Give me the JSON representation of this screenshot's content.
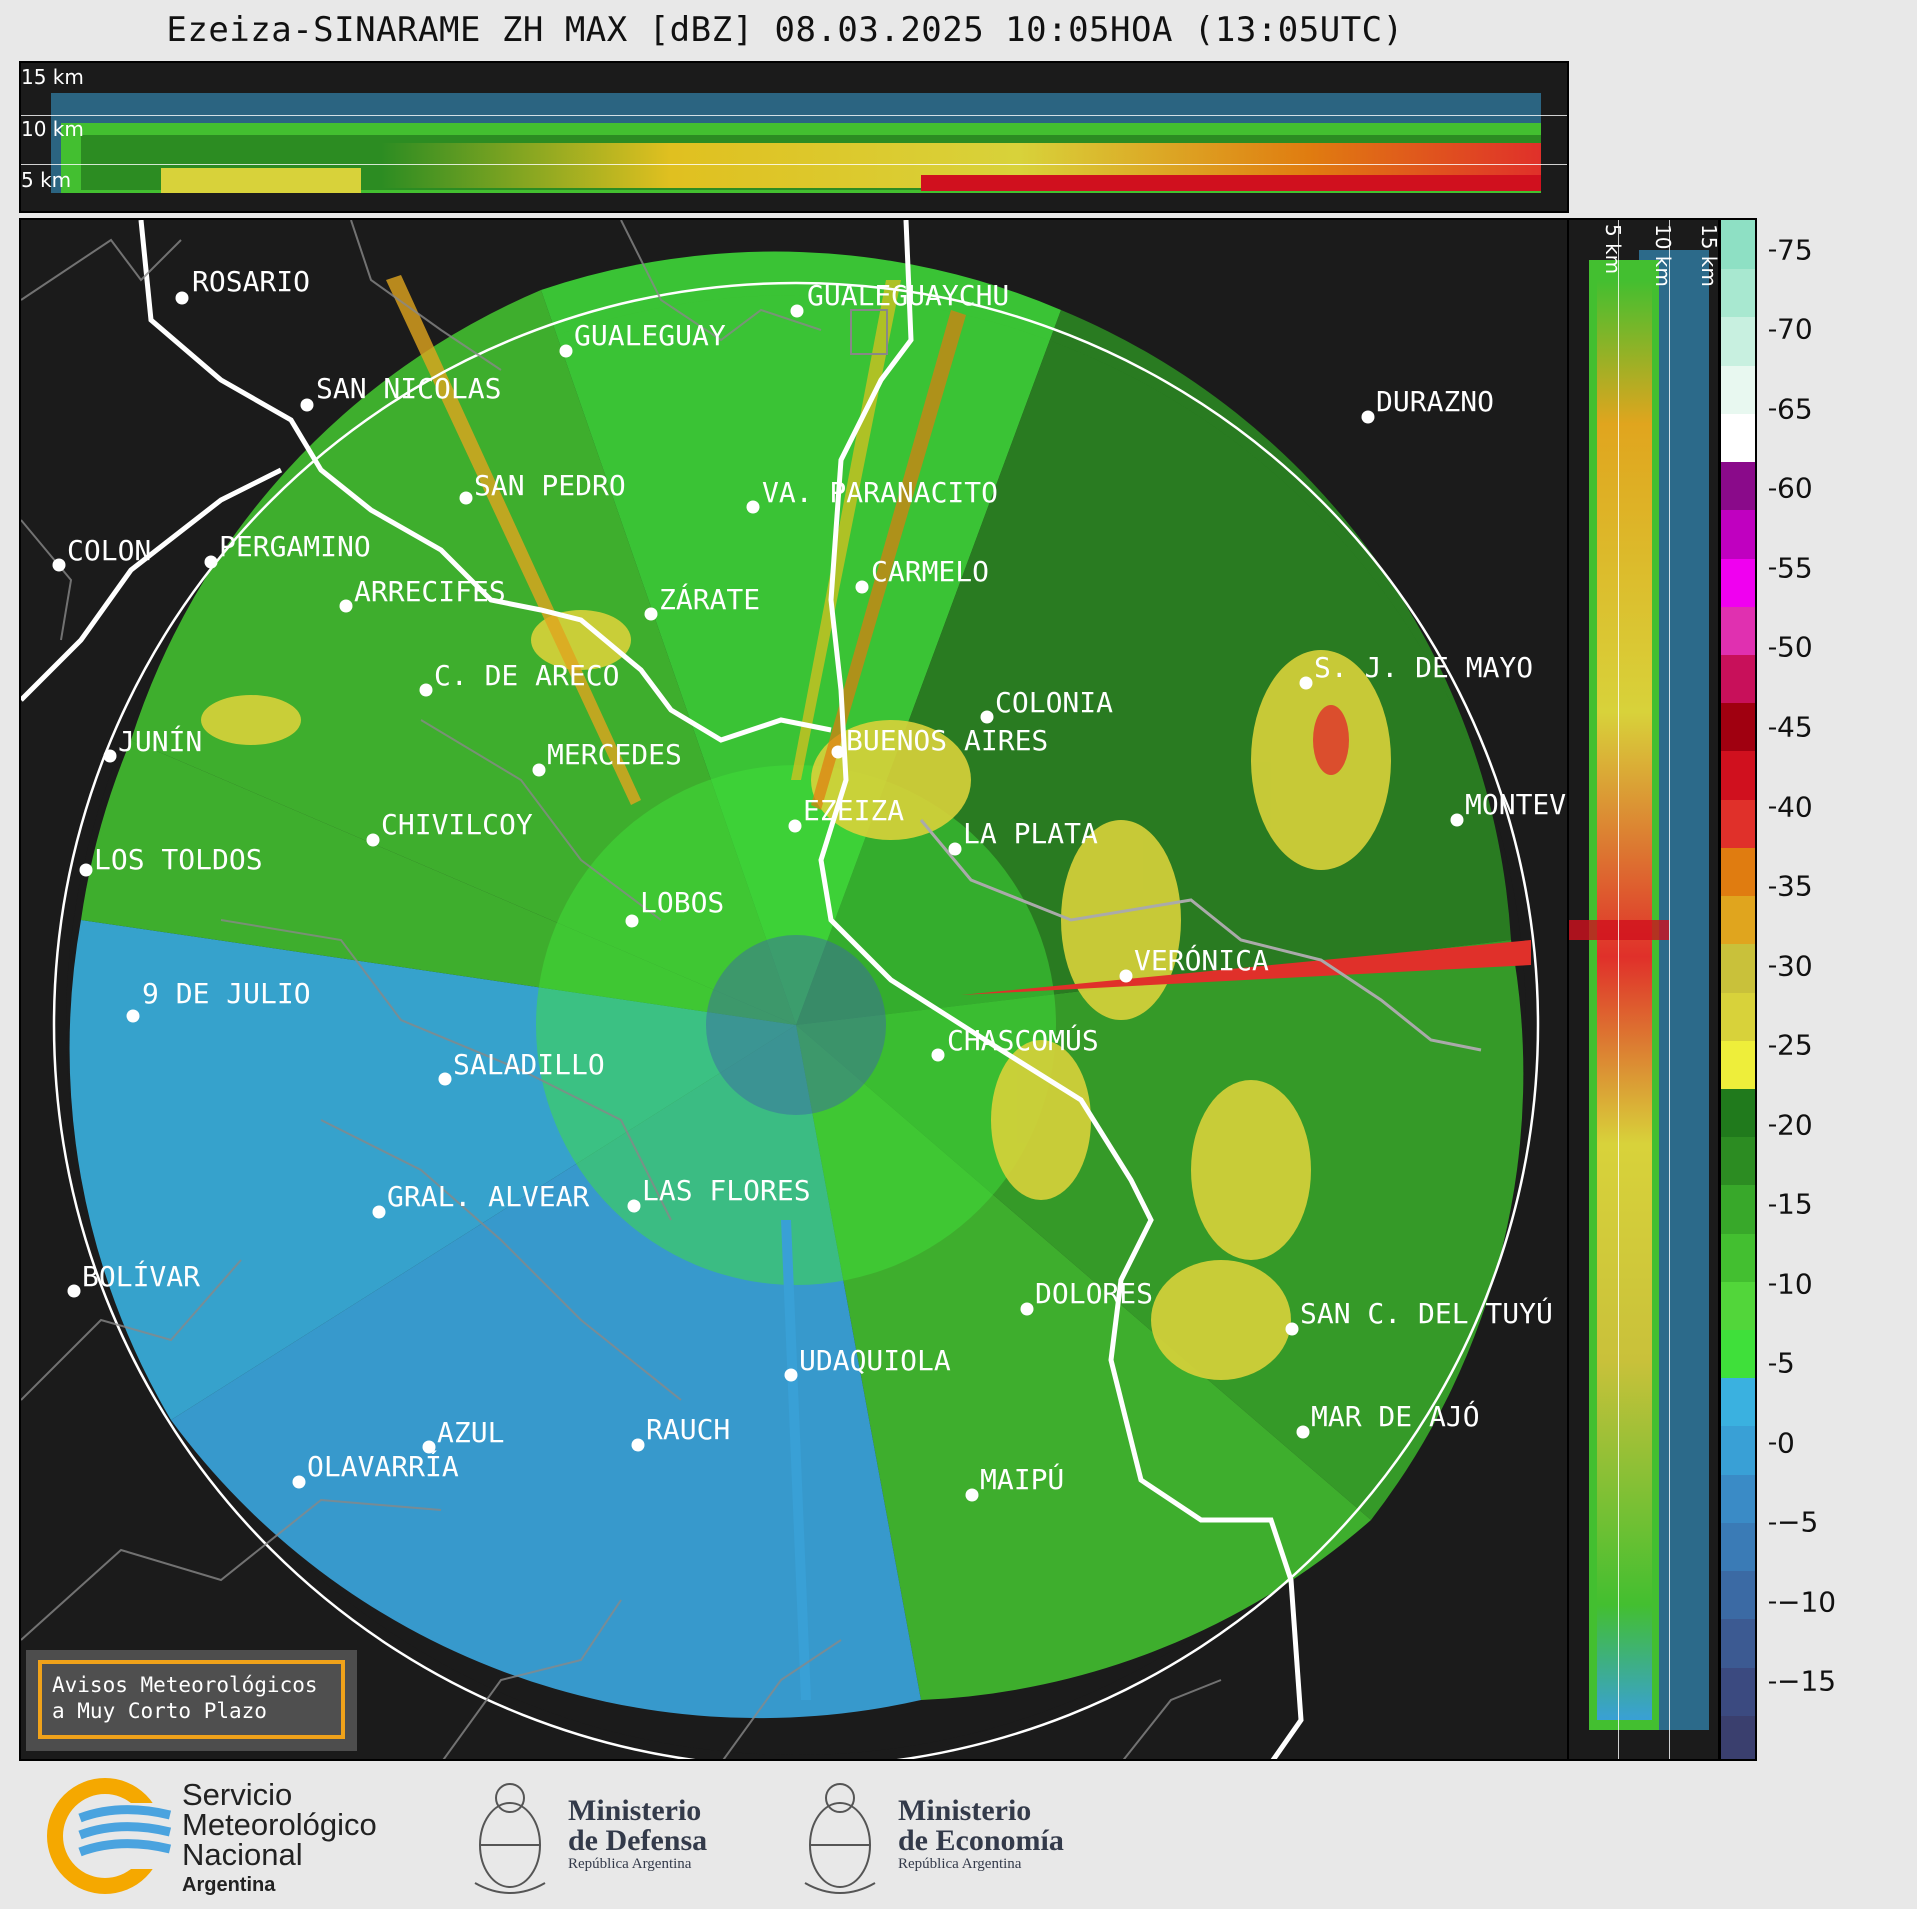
{
  "header": {
    "title": "Ezeiza-SINARAME ZH MAX [dBZ] 08.03.2025 10:05HOA (13:05UTC)"
  },
  "top_strip": {
    "height_labels": [
      "15 km",
      "10 km",
      "5 km"
    ]
  },
  "side_strip": {
    "height_labels": [
      "5 km",
      "10 km",
      "15 km"
    ]
  },
  "colorbar": {
    "ticks": [
      "75",
      "70",
      "65",
      "60",
      "55",
      "50",
      "45",
      "40",
      "35",
      "30",
      "25",
      "20",
      "15",
      "10",
      "5",
      "0",
      "−5",
      "−10",
      "−15"
    ],
    "tick_values": [
      75,
      70,
      65,
      60,
      55,
      50,
      45,
      40,
      35,
      30,
      25,
      20,
      15,
      10,
      5,
      0,
      -5,
      -10,
      -15
    ],
    "range": [
      -20,
      77
    ],
    "colors_low_to_high": [
      "#3a3f6e",
      "#3b4a80",
      "#3c5a92",
      "#3b6aa4",
      "#3a7bb6",
      "#3a8bc6",
      "#39a0d6",
      "#3ab1e0",
      "#3fe03a",
      "#52d63a",
      "#43bf30",
      "#38a82a",
      "#2c8c22",
      "#207a1c",
      "#eeee3a",
      "#d8d23a",
      "#c9c13a",
      "#e0a51e",
      "#e07c10",
      "#e0302a",
      "#d0101e",
      "#a00010",
      "#c8105a",
      "#e030b0",
      "#f000f0",
      "#c000c0",
      "#8a0a8a",
      "#ffffff",
      "#e8f8f0",
      "#c8f0e0",
      "#a8e8d0",
      "#8ee0c4"
    ]
  },
  "cities": [
    {
      "name": "ROSARIO"
    },
    {
      "name": "GUALEGUAYCHU"
    },
    {
      "name": "GUALEGUAY"
    },
    {
      "name": "SAN NICOLAS"
    },
    {
      "name": "DURAZNO"
    },
    {
      "name": "SAN PEDRO"
    },
    {
      "name": "VA. PARANACITO"
    },
    {
      "name": "COLON"
    },
    {
      "name": "PERGAMINO"
    },
    {
      "name": "CARMELO"
    },
    {
      "name": "ARRECIFES"
    },
    {
      "name": "ZÁRATE"
    },
    {
      "name": "S. J. DE MAYO"
    },
    {
      "name": "C. DE ARECO"
    },
    {
      "name": "COLONIA"
    },
    {
      "name": "BUENOS AIRES"
    },
    {
      "name": "JUNÍN"
    },
    {
      "name": "MERCEDES"
    },
    {
      "name": "EZEIZA"
    },
    {
      "name": "MONTEV"
    },
    {
      "name": "CHIVILCOY"
    },
    {
      "name": "LA PLATA"
    },
    {
      "name": "LOS TOLDOS"
    },
    {
      "name": "LOBOS"
    },
    {
      "name": "VERÓNICA"
    },
    {
      "name": "9 DE JULIO"
    },
    {
      "name": "CHASCOMÚS"
    },
    {
      "name": "SALADILLO"
    },
    {
      "name": "GRAL. ALVEAR"
    },
    {
      "name": "LAS FLORES"
    },
    {
      "name": "BOLÍVAR"
    },
    {
      "name": "DOLORES"
    },
    {
      "name": "SAN C. DEL TUYÚ"
    },
    {
      "name": "UDAQUIOLA"
    },
    {
      "name": "MAR DE AJÓ"
    },
    {
      "name": "AZUL"
    },
    {
      "name": "RAUCH"
    },
    {
      "name": "OLAVARRÍA"
    },
    {
      "name": "MAIPÚ"
    }
  ],
  "avisos": {
    "line1": "Avisos Meteorológicos",
    "line2": "a Muy Corto Plazo"
  },
  "footer": {
    "smn": {
      "line1": "Servicio",
      "line2": "Meteorológico",
      "line3": "Nacional",
      "line4": "Argentina"
    },
    "defensa": {
      "line1": "Ministerio",
      "line2": "de Defensa",
      "sub": "República Argentina"
    },
    "economia": {
      "line1": "Ministerio",
      "line2": "de Economía",
      "sub": "República Argentina"
    }
  }
}
